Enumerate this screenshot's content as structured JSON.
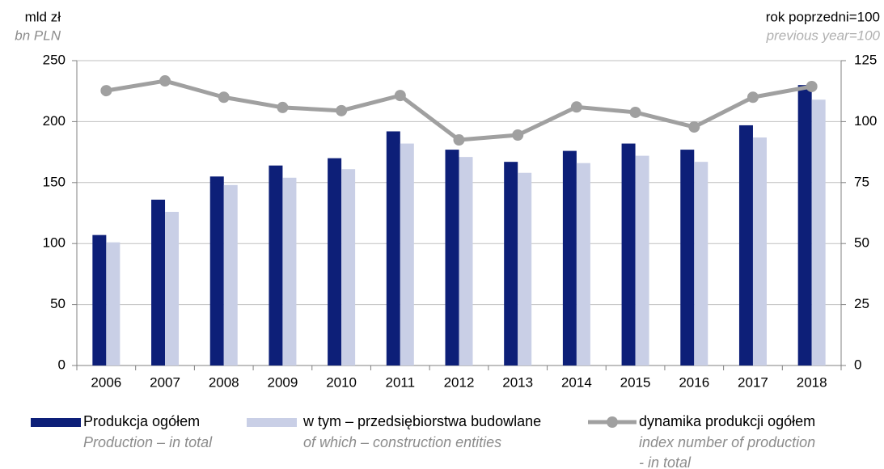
{
  "chart_data": {
    "type": "bar_line",
    "y_label": "mld zł",
    "y_label_en": "bn PLN",
    "y2_label": "rok poprzedni=100",
    "y2_label_en": "previous year=100",
    "categories": [
      "2006",
      "2007",
      "2008",
      "2009",
      "2010",
      "2011",
      "2012",
      "2013",
      "2014",
      "2015",
      "2016",
      "2017",
      "2018"
    ],
    "series": [
      {
        "name": "Produkcja ogółem",
        "name_en": [
          "Production – in total"
        ],
        "color": "#0d1f78",
        "kind": "bar",
        "values": [
          107,
          136,
          155,
          164,
          170,
          192,
          177,
          167,
          176,
          182,
          177,
          197,
          230
        ]
      },
      {
        "name": "w tym – przedsiębiorstwa budowlane",
        "name_en": [
          "of which – construction entities"
        ],
        "color": "#c9cfe6",
        "kind": "bar",
        "values": [
          101,
          126,
          148,
          154,
          161,
          182,
          171,
          158,
          166,
          172,
          167,
          187,
          218
        ]
      },
      {
        "name": "dynamika produkcji ogółem",
        "name_en": [
          "index number of production",
          "- in total"
        ],
        "color": "#a0a0a0",
        "kind": "line",
        "axis": "y2",
        "values": [
          112.7,
          116.7,
          110,
          105.8,
          104.5,
          110.7,
          92.5,
          94.5,
          106,
          103.8,
          97.8,
          110,
          114.4
        ]
      }
    ],
    "ylim": [
      0,
      250
    ],
    "yticks": [
      0,
      50,
      100,
      150,
      200,
      250
    ],
    "y2lim": [
      0,
      125
    ],
    "y2ticks": [
      0,
      25,
      50,
      75,
      100,
      125
    ],
    "grid": true
  }
}
